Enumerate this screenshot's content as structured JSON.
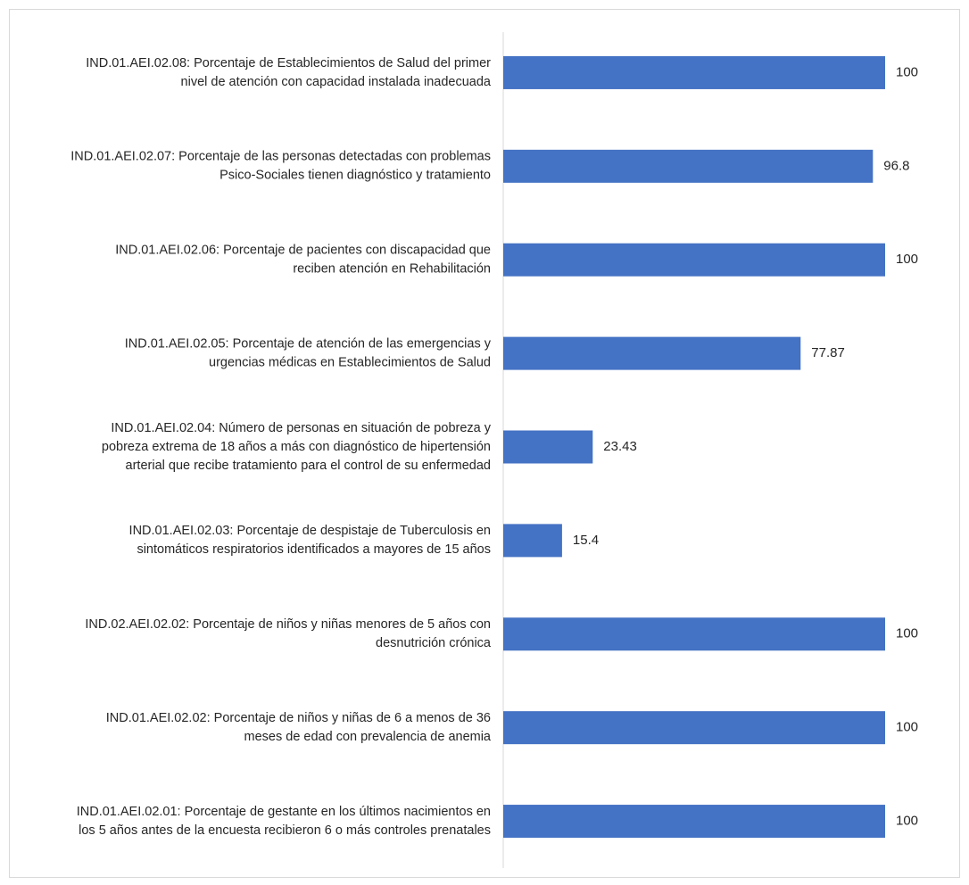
{
  "chart_data": {
    "type": "bar",
    "orientation": "horizontal",
    "categories": [
      [
        "IND.01.AEI.02.08: Porcentaje de Establecimientos de Salud del primer",
        "nivel de atención con capacidad instalada inadecuada"
      ],
      [
        "IND.01.AEI.02.07: Porcentaje de las personas detectadas con problemas",
        "Psico-Sociales tienen diagnóstico y tratamiento"
      ],
      [
        "IND.01.AEI.02.06: Porcentaje de pacientes con discapacidad que",
        "reciben atención en Rehabilitación"
      ],
      [
        "IND.01.AEI.02.05: Porcentaje de atención de las emergencias y",
        "urgencias médicas en Establecimientos de Salud"
      ],
      [
        "IND.01.AEI.02.04: Número de personas en situación de pobreza y",
        "pobreza extrema de 18 años a más con diagnóstico de hipertensión",
        "arterial que recibe tratamiento para el control de su enfermedad"
      ],
      [
        "IND.01.AEI.02.03: Porcentaje de despistaje de Tuberculosis en",
        "sintomáticos respiratorios identificados a mayores de 15 años"
      ],
      [
        "IND.02.AEI.02.02: Porcentaje de niños y niñas menores de 5 años con",
        "desnutrición crónica"
      ],
      [
        "IND.01.AEI.02.02: Porcentaje de niños y niñas de 6 a menos de 36",
        "meses de edad con prevalencia de anemia"
      ],
      [
        "IND.01.AEI.02.01: Porcentaje de gestante en los últimos nacimientos en",
        "los 5 años antes de la encuesta recibieron 6 o más controles prenatales"
      ]
    ],
    "values": [
      100,
      96.8,
      100,
      77.87,
      23.43,
      15.4,
      100,
      100,
      100
    ],
    "value_labels": [
      "100",
      "96.8",
      "100",
      "77.87",
      "23.43",
      "15.4",
      "100",
      "100",
      "100"
    ],
    "xlim": [
      0,
      100
    ],
    "bar_color": "#4472c4",
    "axis_color": "#d9d9d9",
    "text_color": "#262626",
    "grid": false,
    "legend": "none",
    "data_labels": true
  }
}
